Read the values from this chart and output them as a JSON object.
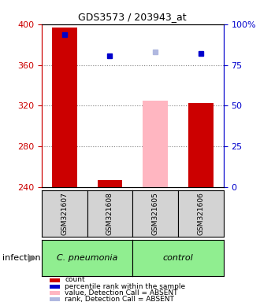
{
  "title": "GDS3573 / 203943_at",
  "samples": [
    "GSM321607",
    "GSM321608",
    "GSM321605",
    "GSM321606"
  ],
  "bar_heights_red": [
    397,
    247,
    null,
    323
  ],
  "bar_heights_pink": [
    null,
    null,
    325,
    null
  ],
  "dot_blue": [
    390,
    369,
    null,
    371
  ],
  "dot_light_blue": [
    null,
    null,
    373,
    null
  ],
  "ymin": 240,
  "ymax": 400,
  "yticks": [
    240,
    280,
    320,
    360,
    400
  ],
  "grid_lines": [
    280,
    320,
    360
  ],
  "y2_vals": [
    0,
    25,
    50,
    75,
    100
  ],
  "y2_labels": [
    "0",
    "25",
    "50",
    "75",
    "100%"
  ],
  "group_label": "infection",
  "group_names": [
    "C. pneumonia",
    "control"
  ],
  "legend_items": [
    {
      "color": "#cc0000",
      "label": "count"
    },
    {
      "color": "#0000cc",
      "label": "percentile rank within the sample"
    },
    {
      "color": "#ffb6c1",
      "label": "value, Detection Call = ABSENT"
    },
    {
      "color": "#b0b8e0",
      "label": "rank, Detection Call = ABSENT"
    }
  ],
  "red_color": "#cc0000",
  "pink_color": "#ffb6c1",
  "blue_color": "#0000cc",
  "light_blue_color": "#b0b8e0",
  "gray_color": "#d3d3d3",
  "green_color": "#90ee90"
}
